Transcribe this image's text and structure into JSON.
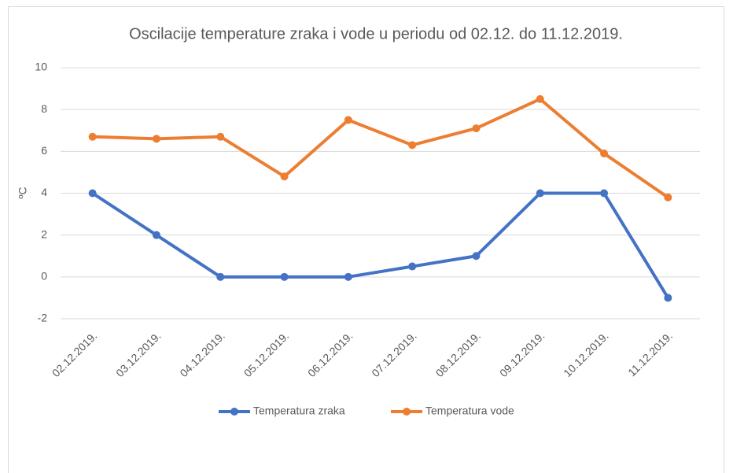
{
  "chart_data": {
    "type": "line",
    "title": "Oscilacije temperature zraka i vode u periodu od 02.12. do 11.12.2019.",
    "y_label": "ºC",
    "categories": [
      "02.12.2019.",
      "03.12.2019.",
      "04.12.2019.",
      "05.12.2019.",
      "06.12.2019.",
      "07.12.2019.",
      "08.12.2019.",
      "09.12.2019.",
      "10.12.2019.",
      "11.12.2019."
    ],
    "series": [
      {
        "name": "Temperatura zraka",
        "color": "#4472c4",
        "values": [
          4,
          2,
          0,
          0,
          0,
          0.5,
          1,
          4,
          4,
          -1
        ]
      },
      {
        "name": "Temperatura vode",
        "color": "#ed7d31",
        "values": [
          6.7,
          6.6,
          6.7,
          4.8,
          7.5,
          6.3,
          7.1,
          8.5,
          5.9,
          3.8
        ]
      }
    ],
    "ylim": [
      -2,
      10
    ],
    "yticks": [
      -2,
      0,
      2,
      4,
      6,
      8,
      10
    ],
    "grid": true,
    "legend": "bottom"
  }
}
